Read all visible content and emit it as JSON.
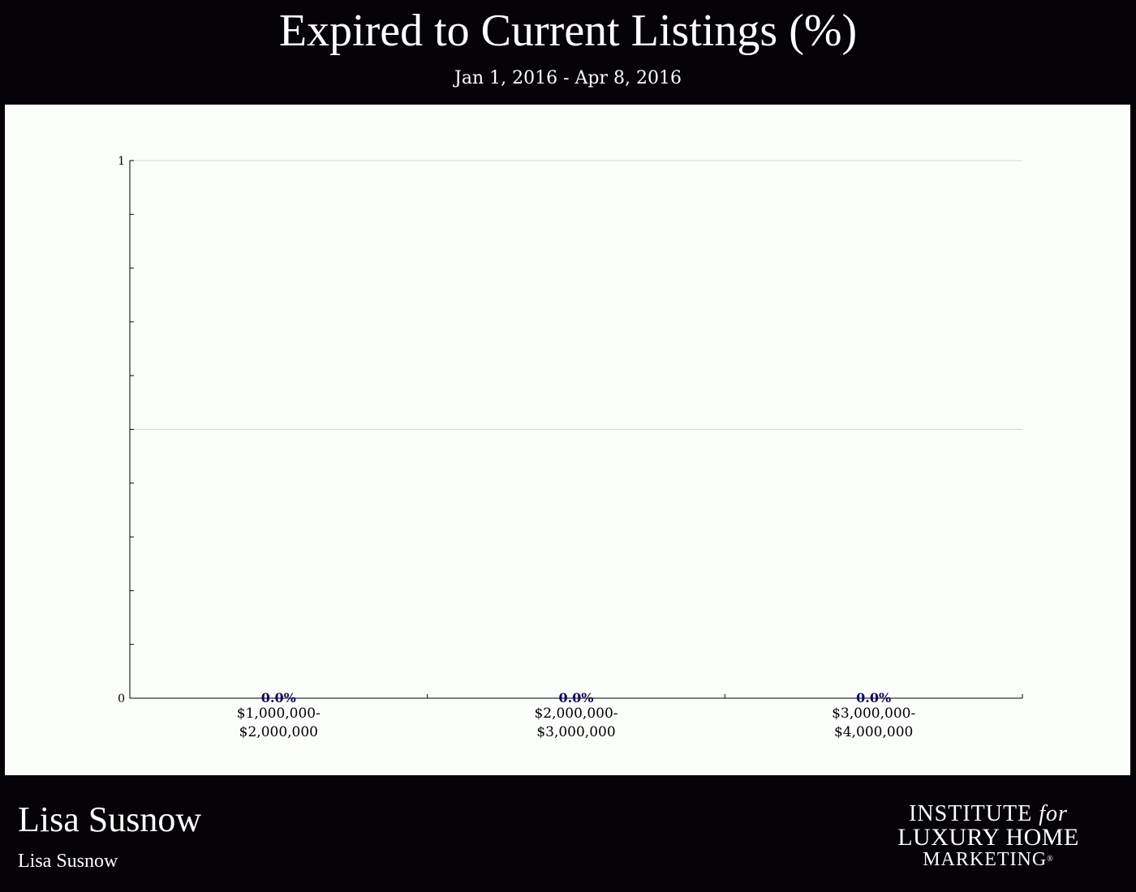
{
  "header": {
    "title": "Expired to Current Listings (%)",
    "date_range": "Jan 1, 2016 - Apr 8, 2016"
  },
  "footer": {
    "agent_name": "Lisa Susnow",
    "agent_subtitle": "Lisa Susnow",
    "logo": {
      "line1_a": "INSTITUTE",
      "line1_b": "for",
      "line2": "LUXURY HOME",
      "line3": "MARKETING",
      "registered": "®"
    }
  },
  "colors": {
    "background": "#050308",
    "panel": "#fbfdfb",
    "axis": "#000000",
    "grid": "#d8d8d8",
    "value_label": "#0b0b5e"
  },
  "chart_data": {
    "type": "bar",
    "categories": [
      [
        "$1,000,000-",
        "$2,000,000"
      ],
      [
        "$2,000,000-",
        "$3,000,000"
      ],
      [
        "$3,000,000-",
        "$4,000,000"
      ]
    ],
    "values": [
      0.0,
      0.0,
      0.0
    ],
    "value_labels": [
      "0.0%",
      "0.0%",
      "0.0%"
    ],
    "ylim": [
      0,
      1
    ],
    "yticks_labeled": [
      0,
      1
    ],
    "ygrid": [
      0.5,
      1
    ],
    "yminor_count": 10,
    "grid": true,
    "legend": "none"
  }
}
